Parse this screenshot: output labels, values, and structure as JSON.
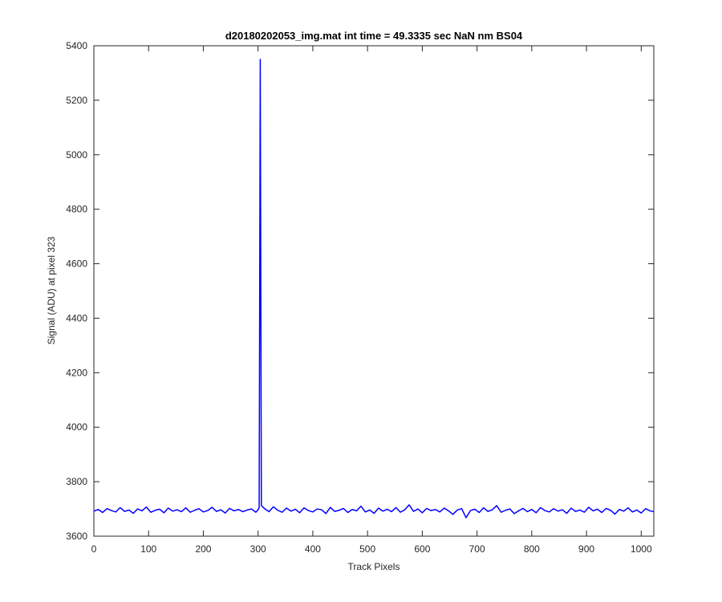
{
  "chart_data": {
    "type": "line",
    "title": "d20180202053_img.mat int time = 49.3335 sec  NaN nm BS04",
    "xlabel": "Track Pixels",
    "ylabel": "Signal (ADU) at pixel 323",
    "xlim": [
      0,
      1023
    ],
    "ylim": [
      3600,
      5400
    ],
    "xticks": [
      0,
      100,
      200,
      300,
      400,
      500,
      600,
      700,
      800,
      900,
      1000
    ],
    "yticks": [
      3600,
      3800,
      4000,
      4200,
      4400,
      4600,
      4800,
      5000,
      5200,
      5400
    ],
    "grid": false,
    "series": [
      {
        "color": "#0000ff",
        "x": [
          0,
          8,
          16,
          24,
          32,
          40,
          48,
          56,
          64,
          72,
          80,
          88,
          96,
          104,
          112,
          120,
          128,
          136,
          144,
          152,
          160,
          168,
          176,
          184,
          192,
          200,
          208,
          216,
          224,
          232,
          240,
          248,
          256,
          264,
          272,
          280,
          288,
          296,
          300,
          302,
          304,
          306,
          312,
          320,
          328,
          336,
          344,
          352,
          360,
          368,
          376,
          384,
          392,
          400,
          408,
          416,
          424,
          432,
          440,
          448,
          456,
          464,
          472,
          480,
          488,
          496,
          504,
          512,
          520,
          528,
          536,
          544,
          552,
          560,
          568,
          576,
          584,
          592,
          600,
          608,
          616,
          624,
          632,
          640,
          648,
          656,
          664,
          672,
          680,
          688,
          696,
          704,
          712,
          720,
          728,
          736,
          744,
          752,
          760,
          768,
          776,
          784,
          792,
          800,
          808,
          816,
          824,
          832,
          840,
          848,
          856,
          864,
          872,
          880,
          888,
          896,
          904,
          912,
          920,
          928,
          936,
          944,
          952,
          960,
          968,
          976,
          984,
          992,
          1000,
          1008,
          1016,
          1023
        ],
        "values": [
          3692,
          3698,
          3687,
          3701,
          3694,
          3689,
          3705,
          3691,
          3696,
          3684,
          3700,
          3693,
          3707,
          3688,
          3695,
          3699,
          3686,
          3703,
          3692,
          3697,
          3690,
          3704,
          3688,
          3695,
          3701,
          3689,
          3694,
          3706,
          3691,
          3697,
          3685,
          3702,
          3693,
          3698,
          3690,
          3696,
          3700,
          3688,
          3697,
          3705,
          5350,
          3712,
          3701,
          3690,
          3708,
          3695,
          3688,
          3703,
          3692,
          3699,
          3686,
          3704,
          3694,
          3689,
          3700,
          3697,
          3683,
          3706,
          3691,
          3695,
          3702,
          3687,
          3698,
          3693,
          3710,
          3689,
          3696,
          3684,
          3703,
          3692,
          3699,
          3690,
          3705,
          3688,
          3697,
          3715,
          3691,
          3700,
          3686,
          3702,
          3694,
          3698,
          3689,
          3703,
          3693,
          3680,
          3696,
          3701,
          3668,
          3694,
          3699,
          3687,
          3704,
          3691,
          3697,
          3712,
          3688,
          3695,
          3700,
          3683,
          3693,
          3702,
          3690,
          3698,
          3686,
          3705,
          3694,
          3689,
          3701,
          3692,
          3697,
          3684,
          3703,
          3691,
          3696,
          3688,
          3706,
          3693,
          3699,
          3687,
          3702,
          3695,
          3681,
          3698,
          3692,
          3704,
          3689,
          3696,
          3685,
          3701,
          3693,
          3690
        ]
      }
    ]
  }
}
